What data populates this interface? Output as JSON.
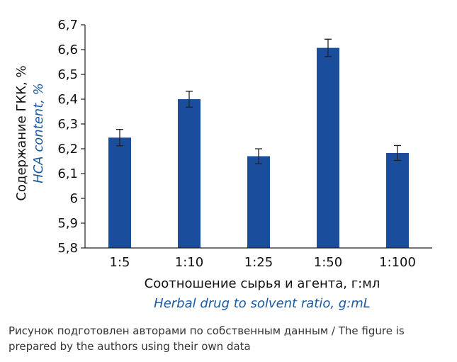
{
  "chart_data": {
    "type": "bar",
    "categories": [
      "1:5",
      "1:10",
      "1:25",
      "1:50",
      "1:100"
    ],
    "values": [
      6.245,
      6.4,
      6.17,
      6.607,
      6.183
    ],
    "errors": [
      0.033,
      0.032,
      0.03,
      0.035,
      0.03
    ],
    "yticks": [
      "5,8",
      "5,9",
      "6",
      "6,1",
      "6,2",
      "6,3",
      "6,4",
      "6,5",
      "6,6",
      "6,7"
    ],
    "ylim": [
      5.8,
      6.7
    ],
    "ylabel": "Содержание ГКК, %",
    "ylabel_en": "HCA content, %",
    "xlabel": "Соотношение сырья и агента, г:мл",
    "xlabel_en": "Herbal drug to solvent ratio, g:mL",
    "bar_color": "#1a4e9c",
    "en_label_color": "#1a5aa0",
    "grid": false
  },
  "caption": "Рисунок подготовлен авторами по собственным данным / The figure is prepared by the authors using their own data"
}
